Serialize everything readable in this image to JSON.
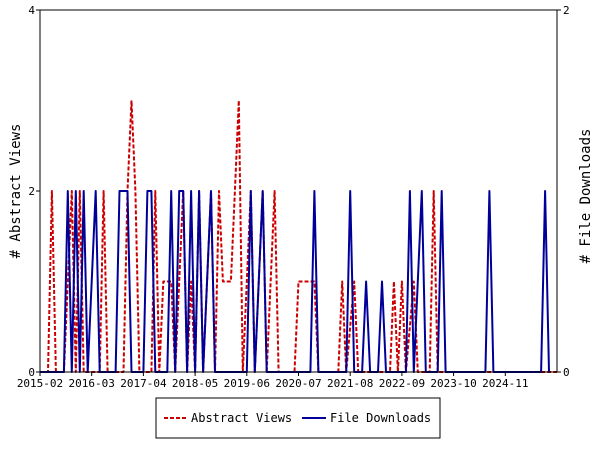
{
  "chart_data": {
    "type": "line",
    "title": "",
    "xlabel": "",
    "ylabel_left": "# Abstract Views",
    "ylabel_right": "# File Downloads",
    "x_tick_labels": [
      "2015-02",
      "2016-03",
      "2017-04",
      "2018-05",
      "2019-06",
      "2020-07",
      "2021-08",
      "2022-09",
      "2023-10",
      "2024-11"
    ],
    "y_left_ticks": [
      "0",
      "2",
      "4"
    ],
    "y_right_ticks": [
      "0",
      "2"
    ],
    "ylim_left": [
      0,
      4
    ],
    "ylim_right": [
      0,
      2
    ],
    "grid": false,
    "legend_position": "bottom",
    "series": [
      {
        "name": "Abstract Views",
        "axis": "left",
        "color": "#cc0000",
        "style": "dashed",
        "points": [
          [
            "2015-02",
            0
          ],
          [
            "2015-04",
            0
          ],
          [
            "2015-05",
            2
          ],
          [
            "2015-06",
            0
          ],
          [
            "2015-08",
            0
          ],
          [
            "2015-10",
            2
          ],
          [
            "2015-11",
            0
          ],
          [
            "2015-12",
            2
          ],
          [
            "2016-01",
            0
          ],
          [
            "2016-05",
            0
          ],
          [
            "2016-06",
            2
          ],
          [
            "2016-07",
            0
          ],
          [
            "2016-11",
            0
          ],
          [
            "2016-12",
            2
          ],
          [
            "2017-01",
            3
          ],
          [
            "2017-02",
            2
          ],
          [
            "2017-03",
            0
          ],
          [
            "2017-06",
            0
          ],
          [
            "2017-07",
            2
          ],
          [
            "2017-08",
            0
          ],
          [
            "2017-09",
            1
          ],
          [
            "2017-11",
            1
          ],
          [
            "2017-12",
            0
          ],
          [
            "2018-01",
            1
          ],
          [
            "2018-02",
            2
          ],
          [
            "2018-03",
            0
          ],
          [
            "2018-04",
            1
          ],
          [
            "2018-05",
            0
          ],
          [
            "2018-06",
            2
          ],
          [
            "2018-07",
            0
          ],
          [
            "2018-09",
            2
          ],
          [
            "2018-10",
            0
          ],
          [
            "2018-11",
            2
          ],
          [
            "2018-12",
            1
          ],
          [
            "2019-02",
            1
          ],
          [
            "2019-03",
            2
          ],
          [
            "2019-04",
            3
          ],
          [
            "2019-05",
            0
          ],
          [
            "2019-06",
            1
          ],
          [
            "2019-07",
            2
          ],
          [
            "2019-08",
            0
          ],
          [
            "2019-10",
            2
          ],
          [
            "2019-11",
            0
          ],
          [
            "2020-01",
            2
          ],
          [
            "2020-02",
            0
          ],
          [
            "2020-06",
            0
          ],
          [
            "2020-07",
            1
          ],
          [
            "2020-11",
            1
          ],
          [
            "2020-12",
            0
          ],
          [
            "2021-05",
            0
          ],
          [
            "2021-06",
            1
          ],
          [
            "2021-07",
            0
          ],
          [
            "2021-09",
            1
          ],
          [
            "2021-10",
            0
          ],
          [
            "2022-06",
            0
          ],
          [
            "2022-07",
            1
          ],
          [
            "2022-08",
            0
          ],
          [
            "2022-09",
            1
          ],
          [
            "2022-10",
            0
          ],
          [
            "2022-12",
            1
          ],
          [
            "2023-01",
            0
          ],
          [
            "2023-04",
            0
          ],
          [
            "2023-05",
            2
          ],
          [
            "2023-06",
            0
          ],
          [
            "2025-12",
            0
          ]
        ]
      },
      {
        "name": "File Downloads",
        "axis": "right",
        "color": "#000099",
        "style": "solid",
        "points": [
          [
            "2015-02",
            0
          ],
          [
            "2015-08",
            0
          ],
          [
            "2015-09",
            1
          ],
          [
            "2015-10",
            0
          ],
          [
            "2015-11",
            1
          ],
          [
            "2015-12",
            0
          ],
          [
            "2016-01",
            1
          ],
          [
            "2016-02",
            0
          ],
          [
            "2016-04",
            1
          ],
          [
            "2016-05",
            0
          ],
          [
            "2016-09",
            0
          ],
          [
            "2016-10",
            1
          ],
          [
            "2016-12",
            1
          ],
          [
            "2017-01",
            0
          ],
          [
            "2017-04",
            0
          ],
          [
            "2017-05",
            1
          ],
          [
            "2017-06",
            1
          ],
          [
            "2017-07",
            0
          ],
          [
            "2017-10",
            0
          ],
          [
            "2017-11",
            1
          ],
          [
            "2017-12",
            0
          ],
          [
            "2018-01",
            1
          ],
          [
            "2018-02",
            1
          ],
          [
            "2018-03",
            0
          ],
          [
            "2018-04",
            1
          ],
          [
            "2018-05",
            0
          ],
          [
            "2018-06",
            1
          ],
          [
            "2018-07",
            0
          ],
          [
            "2018-09",
            1
          ],
          [
            "2018-10",
            0
          ],
          [
            "2019-06",
            0
          ],
          [
            "2019-07",
            1
          ],
          [
            "2019-08",
            0
          ],
          [
            "2019-10",
            1
          ],
          [
            "2019-11",
            0
          ],
          [
            "2020-10",
            0
          ],
          [
            "2020-11",
            1
          ],
          [
            "2020-12",
            0
          ],
          [
            "2021-07",
            0
          ],
          [
            "2021-08",
            1
          ],
          [
            "2021-09",
            0
          ],
          [
            "2021-11",
            0
          ],
          [
            "2021-12",
            0.5
          ],
          [
            "2022-01",
            0
          ],
          [
            "2022-03",
            0
          ],
          [
            "2022-04",
            0.5
          ],
          [
            "2022-05",
            0
          ],
          [
            "2022-10",
            0
          ],
          [
            "2022-11",
            1
          ],
          [
            "2022-12",
            0
          ],
          [
            "2023-02",
            1
          ],
          [
            "2023-03",
            0
          ],
          [
            "2023-06",
            0
          ],
          [
            "2023-07",
            1
          ],
          [
            "2023-08",
            0
          ],
          [
            "2024-06",
            0
          ],
          [
            "2024-07",
            1
          ],
          [
            "2024-08",
            0
          ],
          [
            "2025-08",
            0
          ],
          [
            "2025-09",
            1
          ],
          [
            "2025-10",
            0
          ]
        ]
      }
    ]
  }
}
